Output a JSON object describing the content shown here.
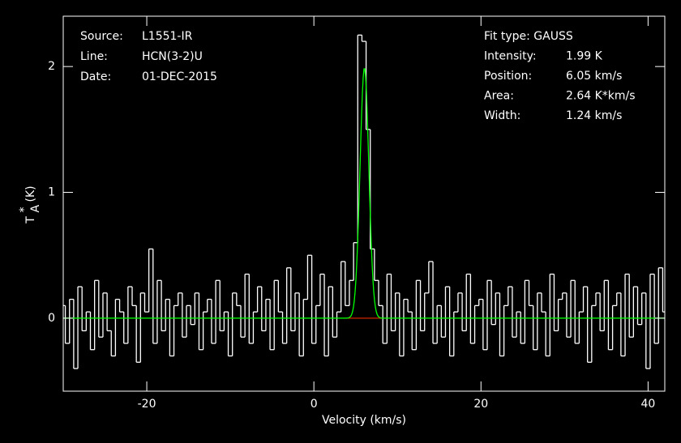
{
  "chart_data": {
    "type": "step",
    "x_label": "Velocity (km/s)",
    "y_label": {
      "main": "T",
      "sub": "A",
      "sup": "*",
      "unit": "(K)"
    },
    "xlim": [
      -30,
      42
    ],
    "ylim": [
      -0.58,
      2.4
    ],
    "xticks": [
      -20,
      0,
      20,
      40
    ],
    "yticks": [
      0,
      1,
      2
    ],
    "info_left": [
      [
        "Source:",
        "L1551-IR"
      ],
      [
        "Line:",
        "HCN(3-2)U"
      ],
      [
        "Date:",
        "01-DEC-2015"
      ]
    ],
    "info_right": [
      [
        "Fit type: GAUSS",
        ""
      ],
      [
        "Intensity:",
        "1.99 K"
      ],
      [
        "Position:",
        "6.05 km/s"
      ],
      [
        "Area:",
        "2.64 K*km/s"
      ],
      [
        "Width:",
        "1.24 km/s"
      ]
    ],
    "series": [
      {
        "color": "#ffffff",
        "x": [
          -30,
          -29.5,
          -29,
          -28.5,
          -28,
          -27.5,
          -27,
          -26.5,
          -26,
          -25.5,
          -25,
          -24.5,
          -24,
          -23.5,
          -23,
          -22.5,
          -22,
          -21.5,
          -21,
          -20.5,
          -20,
          -19.5,
          -19,
          -18.5,
          -18,
          -17.5,
          -17,
          -16.5,
          -16,
          -15.5,
          -15,
          -14.5,
          -14,
          -13.5,
          -13,
          -12.5,
          -12,
          -11.5,
          -11,
          -10.5,
          -10,
          -9.5,
          -9,
          -8.5,
          -8,
          -7.5,
          -7,
          -6.5,
          -6,
          -5.5,
          -5,
          -4.5,
          -4,
          -3.5,
          -3,
          -2.5,
          -2,
          -1.5,
          -1,
          -0.5,
          0,
          0.5,
          1,
          1.5,
          2,
          2.5,
          3,
          3.5,
          4,
          4.5,
          5,
          5.5,
          6,
          6.5,
          7,
          7.5,
          8,
          8.5,
          9,
          9.5,
          10,
          10.5,
          11,
          11.5,
          12,
          12.5,
          13,
          13.5,
          14,
          14.5,
          15,
          15.5,
          16,
          16.5,
          17,
          17.5,
          18,
          18.5,
          19,
          19.5,
          20,
          20.5,
          21,
          21.5,
          22,
          22.5,
          23,
          23.5,
          24,
          24.5,
          25,
          25.5,
          26,
          26.5,
          27,
          27.5,
          28,
          28.5,
          29,
          29.5,
          30,
          30.5,
          31,
          31.5,
          32,
          32.5,
          33,
          33.5,
          34,
          34.5,
          35,
          35.5,
          36,
          36.5,
          37,
          37.5,
          38,
          38.5,
          39,
          39.5,
          40,
          40.5,
          41,
          41.5,
          42
        ],
        "values": [
          0.1,
          -0.2,
          0.15,
          -0.4,
          0.25,
          -0.1,
          0.05,
          -0.25,
          0.3,
          -0.15,
          0.2,
          -0.1,
          -0.3,
          0.15,
          0.05,
          -0.2,
          0.25,
          0.1,
          -0.35,
          0.2,
          0.05,
          0.55,
          -0.2,
          0.3,
          -0.1,
          0.15,
          -0.3,
          0.1,
          0.2,
          -0.15,
          0.1,
          -0.05,
          0.2,
          -0.25,
          0.05,
          0.15,
          -0.2,
          0.3,
          -0.1,
          0.05,
          -0.3,
          0.2,
          0.1,
          -0.15,
          0.35,
          -0.2,
          0.05,
          0.25,
          -0.1,
          0.15,
          -0.25,
          0.3,
          0.05,
          -0.2,
          0.4,
          -0.1,
          0.2,
          -0.3,
          0.15,
          0.5,
          -0.2,
          0.1,
          0.35,
          -0.3,
          0.25,
          -0.15,
          0.05,
          0.45,
          0.1,
          0.3,
          0.6,
          2.25,
          2.2,
          1.5,
          0.55,
          0.3,
          0.1,
          -0.2,
          0.35,
          -0.1,
          0.2,
          -0.3,
          0.15,
          0.05,
          -0.25,
          0.3,
          -0.1,
          0.2,
          0.45,
          -0.2,
          0.1,
          -0.15,
          0.25,
          -0.3,
          0.05,
          0.2,
          -0.1,
          0.35,
          -0.2,
          0.1,
          0.15,
          -0.25,
          0.3,
          -0.05,
          0.2,
          -0.3,
          0.1,
          0.25,
          -0.15,
          0.05,
          -0.2,
          0.3,
          0.1,
          -0.25,
          0.2,
          0.05,
          -0.3,
          0.35,
          -0.1,
          0.15,
          0.2,
          -0.15,
          0.3,
          -0.2,
          0.05,
          0.25,
          -0.35,
          0.1,
          0.2,
          -0.1,
          0.3,
          -0.25,
          0.1,
          0.2,
          -0.3,
          0.35,
          -0.15,
          0.25,
          -0.05,
          0.2,
          -0.4,
          0.35,
          -0.2,
          0.4,
          0.05
        ]
      }
    ],
    "fit": {
      "color": "#00ff00",
      "amplitude": 1.99,
      "center": 6.05,
      "fwhm": 1.24
    },
    "baseline": {
      "color": "#ff0000",
      "x": [
        3.5,
        9
      ]
    }
  }
}
